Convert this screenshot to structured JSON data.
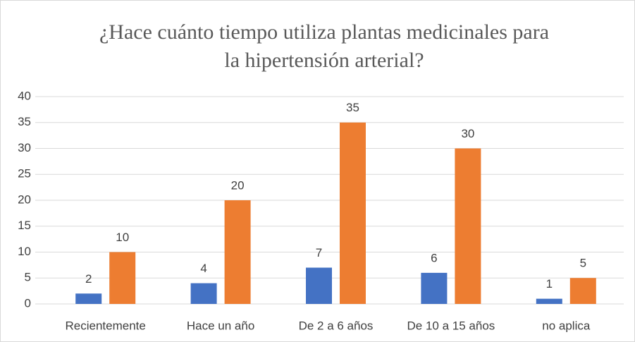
{
  "chart_data": {
    "type": "bar",
    "title": "¿Hace cuánto tiempo utiliza plantas medicinales para la hipertensión arterial?",
    "categories": [
      "Recientemente",
      "Hace un año",
      "De 2 a 6 años",
      "De 10 a 15 años",
      "no aplica"
    ],
    "series": [
      {
        "color": "#4472c4",
        "values": [
          2,
          4,
          7,
          6,
          1
        ]
      },
      {
        "color": "#ed7d31",
        "values": [
          10,
          20,
          35,
          30,
          5
        ]
      }
    ],
    "ylim": [
      0,
      40
    ],
    "yticks": [
      0,
      5,
      10,
      15,
      20,
      25,
      30,
      35,
      40
    ],
    "grid": true
  }
}
